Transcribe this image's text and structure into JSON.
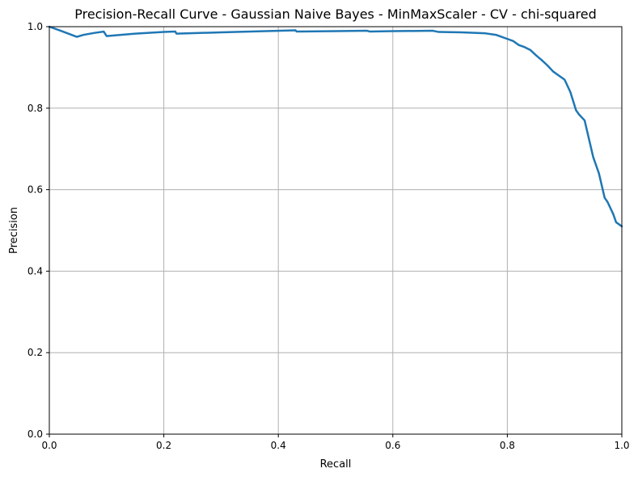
{
  "chart_data": {
    "type": "line",
    "title": "Precision-Recall Curve - Gaussian Naive Bayes - MinMaxScaler - CV - chi-squared",
    "xlabel": "Recall",
    "ylabel": "Precision",
    "xlim": [
      0,
      1
    ],
    "ylim": [
      0,
      1
    ],
    "grid": true,
    "xticks": [
      "0.0",
      "0.2",
      "0.4",
      "0.6",
      "0.8",
      "1.0"
    ],
    "yticks": [
      "0.0",
      "0.2",
      "0.4",
      "0.6",
      "0.8",
      "1.0"
    ],
    "series": [
      {
        "color": "#1f77b4",
        "x": [
          0.0,
          0.02,
          0.048,
          0.06,
          0.08,
          0.095,
          0.1,
          0.15,
          0.2,
          0.22,
          0.222,
          0.3,
          0.43,
          0.432,
          0.5,
          0.555,
          0.56,
          0.6,
          0.67,
          0.68,
          0.72,
          0.76,
          0.78,
          0.79,
          0.8,
          0.81,
          0.82,
          0.83,
          0.84,
          0.85,
          0.86,
          0.87,
          0.88,
          0.89,
          0.9,
          0.91,
          0.92,
          0.925,
          0.935,
          0.94,
          0.945,
          0.95,
          0.955,
          0.96,
          0.965,
          0.97,
          0.975,
          0.98,
          0.985,
          0.99,
          0.995,
          1.0
        ],
        "y": [
          1.0,
          0.99,
          0.975,
          0.98,
          0.985,
          0.988,
          0.977,
          0.983,
          0.987,
          0.988,
          0.983,
          0.986,
          0.991,
          0.988,
          0.989,
          0.99,
          0.988,
          0.989,
          0.99,
          0.987,
          0.986,
          0.984,
          0.98,
          0.975,
          0.97,
          0.965,
          0.955,
          0.95,
          0.943,
          0.93,
          0.918,
          0.905,
          0.89,
          0.88,
          0.87,
          0.84,
          0.795,
          0.785,
          0.77,
          0.74,
          0.71,
          0.68,
          0.66,
          0.64,
          0.61,
          0.58,
          0.57,
          0.555,
          0.54,
          0.52,
          0.515,
          0.51
        ]
      }
    ]
  }
}
